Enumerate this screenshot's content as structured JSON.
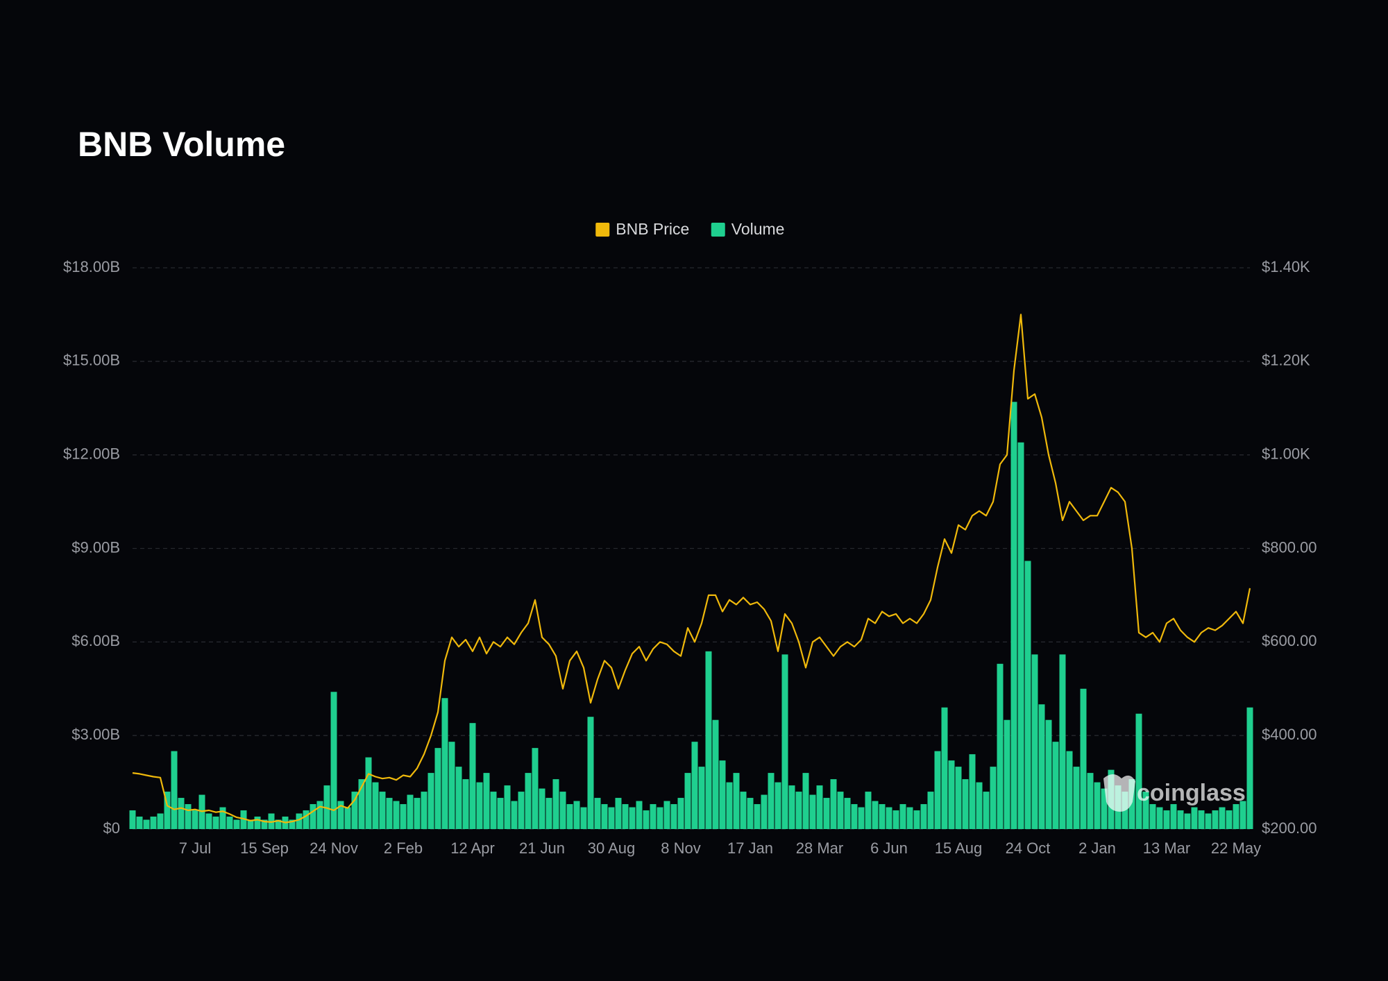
{
  "chart_data": {
    "type": "combo",
    "title": "BNB Volume",
    "watermark": "coinglass",
    "legend": "top",
    "grid": true,
    "categories": [
      null,
      null,
      null,
      null,
      null,
      null,
      null,
      null,
      null,
      "7 Jul",
      null,
      null,
      null,
      null,
      null,
      null,
      null,
      null,
      null,
      "15 Sep",
      null,
      null,
      null,
      null,
      null,
      null,
      null,
      null,
      null,
      "24 Nov",
      null,
      null,
      null,
      null,
      null,
      null,
      null,
      null,
      null,
      "2 Feb",
      null,
      null,
      null,
      null,
      null,
      null,
      null,
      null,
      null,
      "12 Apr",
      null,
      null,
      null,
      null,
      null,
      null,
      null,
      null,
      null,
      "21 Jun",
      null,
      null,
      null,
      null,
      null,
      null,
      null,
      null,
      null,
      "30 Aug",
      null,
      null,
      null,
      null,
      null,
      null,
      null,
      null,
      null,
      "8 Nov",
      null,
      null,
      null,
      null,
      null,
      null,
      null,
      null,
      null,
      "17 Jan",
      null,
      null,
      null,
      null,
      null,
      null,
      null,
      null,
      null,
      "28 Mar",
      null,
      null,
      null,
      null,
      null,
      null,
      null,
      null,
      null,
      "6 Jun",
      null,
      null,
      null,
      null,
      null,
      null,
      null,
      null,
      null,
      "15 Aug",
      null,
      null,
      null,
      null,
      null,
      null,
      null,
      null,
      null,
      "24 Oct",
      null,
      null,
      null,
      null,
      null,
      null,
      null,
      null,
      null,
      "2 Jan",
      null,
      null,
      null,
      null,
      null,
      null,
      null,
      null,
      null,
      "13 Mar",
      null,
      null,
      null,
      null,
      null,
      null,
      null,
      null,
      null,
      "22 May",
      null,
      null
    ],
    "ylim": [
      0,
      18
    ],
    "yticks": [
      {
        "value": 0,
        "label": "$0"
      },
      {
        "value": 3,
        "label": "$3.00B"
      },
      {
        "value": 6,
        "label": "$6.00B"
      },
      {
        "value": 9,
        "label": "$9.00B"
      },
      {
        "value": 12,
        "label": "$12.00B"
      },
      {
        "value": 15,
        "label": "$15.00B"
      },
      {
        "value": 18,
        "label": "$18.00B"
      }
    ],
    "y2lim": [
      200,
      1400
    ],
    "y2ticks": [
      {
        "value": 200,
        "label": "$200.00"
      },
      {
        "value": 400,
        "label": "$400.00"
      },
      {
        "value": 600,
        "label": "$600.00"
      },
      {
        "value": 800,
        "label": "$800.00"
      },
      {
        "value": 1000,
        "label": "$1.00K"
      },
      {
        "value": 1200,
        "label": "$1.20K"
      },
      {
        "value": 1400,
        "label": "$1.40K"
      }
    ],
    "series": [
      {
        "name": "BNB Price",
        "type": "line",
        "axis": "y2",
        "color": "#f0b90b",
        "values": [
          320,
          318,
          315,
          312,
          310,
          250,
          242,
          245,
          240,
          242,
          238,
          240,
          236,
          238,
          232,
          225,
          222,
          218,
          220,
          216,
          215,
          218,
          214,
          216,
          220,
          228,
          238,
          248,
          245,
          240,
          250,
          245,
          262,
          290,
          318,
          312,
          308,
          310,
          305,
          315,
          312,
          330,
          360,
          400,
          450,
          560,
          610,
          590,
          605,
          580,
          610,
          575,
          600,
          590,
          610,
          595,
          620,
          640,
          690,
          610,
          595,
          570,
          500,
          560,
          580,
          545,
          470,
          520,
          560,
          545,
          500,
          540,
          575,
          590,
          560,
          585,
          600,
          595,
          580,
          570,
          630,
          600,
          640,
          700,
          700,
          665,
          690,
          680,
          695,
          680,
          685,
          670,
          645,
          580,
          660,
          640,
          600,
          545,
          600,
          610,
          590,
          570,
          590,
          600,
          590,
          605,
          650,
          640,
          665,
          655,
          660,
          640,
          650,
          640,
          660,
          690,
          760,
          820,
          790,
          850,
          840,
          870,
          880,
          870,
          900,
          980,
          1000,
          1180,
          1300,
          1120,
          1130,
          1080,
          1000,
          940,
          860,
          900,
          880,
          860,
          870,
          870,
          900,
          930,
          920,
          900,
          800,
          620,
          610,
          620,
          600,
          640,
          650,
          625,
          610,
          600,
          620,
          630,
          625,
          635,
          650,
          665,
          640,
          715
        ]
      },
      {
        "name": "Volume",
        "type": "bar",
        "axis": "y",
        "color": "#1fcf8f",
        "values": [
          0.6,
          0.4,
          0.3,
          0.4,
          0.5,
          1.2,
          2.5,
          1.0,
          0.8,
          0.6,
          1.1,
          0.5,
          0.4,
          0.7,
          0.4,
          0.3,
          0.6,
          0.3,
          0.4,
          0.3,
          0.5,
          0.3,
          0.4,
          0.3,
          0.5,
          0.6,
          0.8,
          0.9,
          1.4,
          4.4,
          0.9,
          0.7,
          1.2,
          1.6,
          2.3,
          1.5,
          1.2,
          1.0,
          0.9,
          0.8,
          1.1,
          1.0,
          1.2,
          1.8,
          2.6,
          4.2,
          2.8,
          2.0,
          1.6,
          3.4,
          1.5,
          1.8,
          1.2,
          1.0,
          1.4,
          0.9,
          1.2,
          1.8,
          2.6,
          1.3,
          1.0,
          1.6,
          1.2,
          0.8,
          0.9,
          0.7,
          3.6,
          1.0,
          0.8,
          0.7,
          1.0,
          0.8,
          0.7,
          0.9,
          0.6,
          0.8,
          0.7,
          0.9,
          0.8,
          1.0,
          1.8,
          2.8,
          2.0,
          5.7,
          3.5,
          2.2,
          1.5,
          1.8,
          1.2,
          1.0,
          0.8,
          1.1,
          1.8,
          1.5,
          5.6,
          1.4,
          1.2,
          1.8,
          1.1,
          1.4,
          1.0,
          1.6,
          1.2,
          1.0,
          0.8,
          0.7,
          1.2,
          0.9,
          0.8,
          0.7,
          0.6,
          0.8,
          0.7,
          0.6,
          0.8,
          1.2,
          2.5,
          3.9,
          2.2,
          2.0,
          1.6,
          2.4,
          1.5,
          1.2,
          2.0,
          5.3,
          3.5,
          13.7,
          12.4,
          8.6,
          5.6,
          4.0,
          3.5,
          2.8,
          5.6,
          2.5,
          2.0,
          4.5,
          1.8,
          1.5,
          1.3,
          1.9,
          1.4,
          1.2,
          1.6,
          3.7,
          1.2,
          0.8,
          0.7,
          0.6,
          0.8,
          0.6,
          0.5,
          0.7,
          0.6,
          0.5,
          0.6,
          0.7,
          0.6,
          0.8,
          0.9,
          3.9
        ]
      }
    ]
  }
}
